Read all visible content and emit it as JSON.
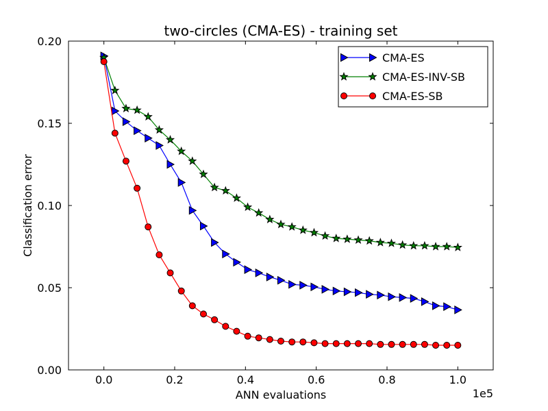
{
  "chart_data": {
    "type": "line",
    "title": "two-circles (CMA-ES) - training set",
    "xlabel": "ANN evaluations",
    "ylabel": "Classification error",
    "x_multiplier_label": "1e5",
    "xlim": [
      -0.1,
      1.1
    ],
    "ylim": [
      0.0,
      0.2
    ],
    "xticks": [
      0.0,
      0.2,
      0.4,
      0.6,
      0.8,
      1.0
    ],
    "xtick_labels": [
      "0.0",
      "0.2",
      "0.4",
      "0.6",
      "0.8",
      "1.0"
    ],
    "yticks": [
      0.0,
      0.05,
      0.1,
      0.15,
      0.2
    ],
    "ytick_labels": [
      "0.00",
      "0.05",
      "0.10",
      "0.15",
      "0.20"
    ],
    "grid": false,
    "legend_position": "top-right",
    "x": [
      0.0,
      0.0313,
      0.0625,
      0.0938,
      0.125,
      0.1563,
      0.1875,
      0.2188,
      0.25,
      0.2813,
      0.3125,
      0.3438,
      0.375,
      0.4063,
      0.4375,
      0.4688,
      0.5,
      0.5313,
      0.5625,
      0.5938,
      0.625,
      0.6563,
      0.6875,
      0.7188,
      0.75,
      0.7813,
      0.8125,
      0.8438,
      0.875,
      0.9063,
      0.9375,
      0.9688,
      1.0
    ],
    "series": [
      {
        "name": "CMA-ES",
        "color": "#0000ff",
        "marker": "triangle-right",
        "values": [
          0.191,
          0.1575,
          0.151,
          0.1455,
          0.141,
          0.1365,
          0.125,
          0.114,
          0.097,
          0.0875,
          0.0775,
          0.0705,
          0.0655,
          0.061,
          0.059,
          0.0565,
          0.0545,
          0.052,
          0.0515,
          0.0505,
          0.049,
          0.048,
          0.0475,
          0.047,
          0.046,
          0.0455,
          0.0445,
          0.044,
          0.0435,
          0.0415,
          0.039,
          0.0385,
          0.0365
        ]
      },
      {
        "name": "CMA-ES-INV-SB",
        "color": "#008000",
        "marker": "star",
        "values": [
          0.19,
          0.17,
          0.159,
          0.158,
          0.154,
          0.146,
          0.14,
          0.133,
          0.127,
          0.119,
          0.111,
          0.109,
          0.1045,
          0.099,
          0.0955,
          0.0915,
          0.0885,
          0.087,
          0.085,
          0.0835,
          0.0815,
          0.08,
          0.0795,
          0.079,
          0.0785,
          0.0775,
          0.077,
          0.076,
          0.0755,
          0.0755,
          0.075,
          0.075,
          0.0745
        ]
      },
      {
        "name": "CMA-ES-SB",
        "color": "#ff0000",
        "marker": "circle",
        "values": [
          0.1875,
          0.144,
          0.127,
          0.1105,
          0.087,
          0.07,
          0.059,
          0.048,
          0.039,
          0.034,
          0.0305,
          0.0265,
          0.0235,
          0.0205,
          0.0195,
          0.0185,
          0.0175,
          0.017,
          0.017,
          0.0165,
          0.016,
          0.016,
          0.016,
          0.016,
          0.016,
          0.0155,
          0.0155,
          0.0155,
          0.0155,
          0.0155,
          0.015,
          0.015,
          0.015
        ]
      }
    ]
  }
}
